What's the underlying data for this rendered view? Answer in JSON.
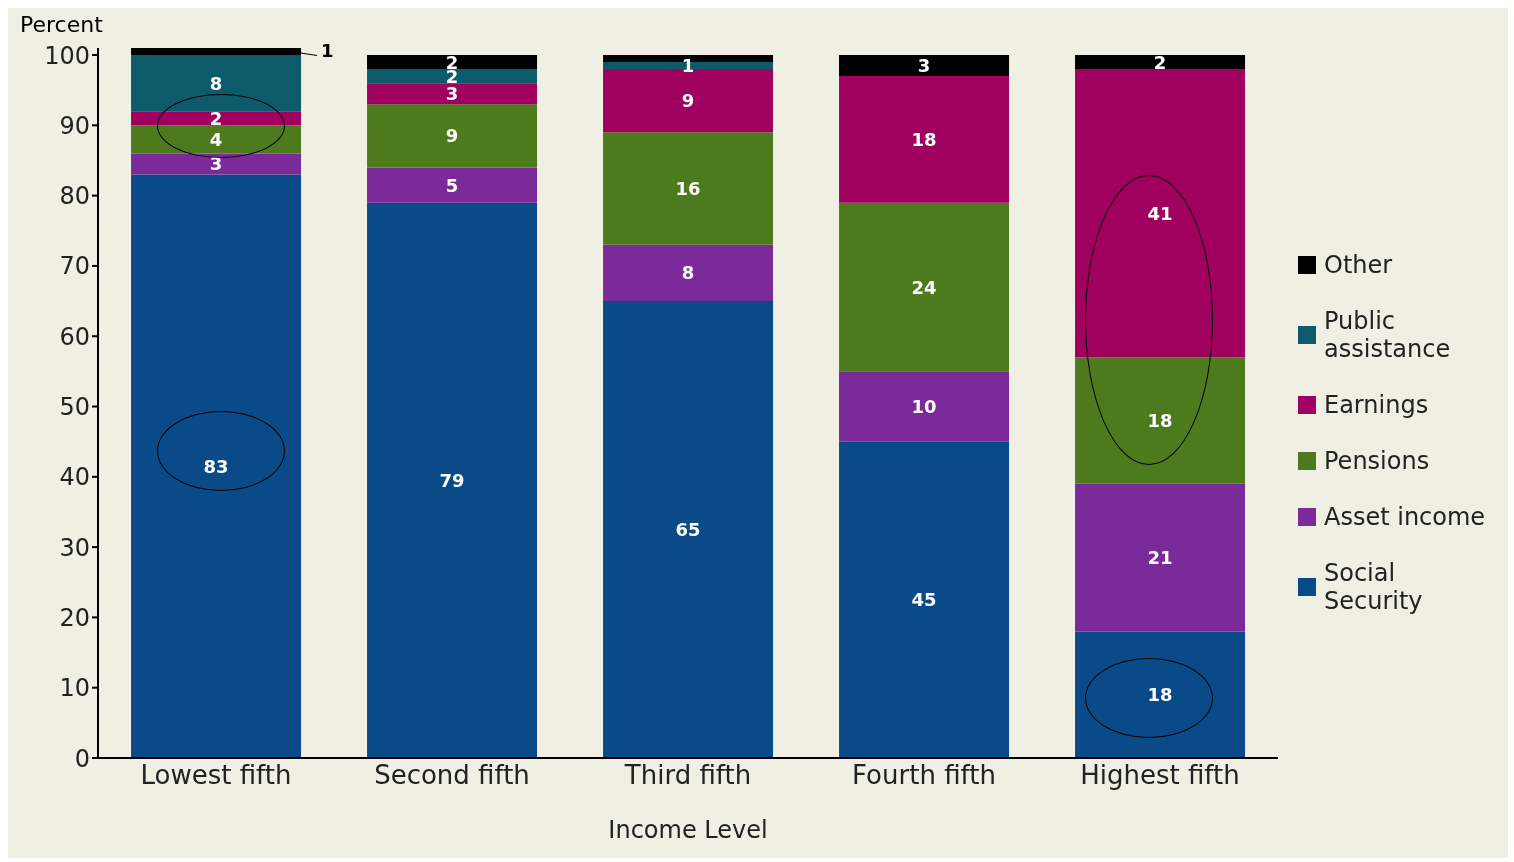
{
  "chart_data": {
    "type": "bar",
    "stacked": true,
    "ylabel": "Percent",
    "xlabel": "Income Level",
    "categories": [
      "Lowest fifth",
      "Second fifth",
      "Third fifth",
      "Fourth fifth",
      "Highest fifth"
    ],
    "series": [
      {
        "name": "Social Security",
        "color": "#0a4a88",
        "values": [
          83,
          79,
          65,
          45,
          18
        ],
        "value_labels": [
          "83",
          "79",
          "65",
          "45",
          "18"
        ]
      },
      {
        "name": "Asset income",
        "color": "#7b2a9a",
        "values": [
          3,
          5,
          8,
          10,
          21
        ],
        "value_labels": [
          "3",
          "5",
          "8",
          "10",
          "21"
        ]
      },
      {
        "name": "Pensions",
        "color": "#4e7a1e",
        "values": [
          4,
          9,
          16,
          24,
          18
        ],
        "value_labels": [
          "4",
          "9",
          "16",
          "24",
          "18"
        ]
      },
      {
        "name": "Earnings",
        "color": "#a0005f",
        "values": [
          2,
          3,
          9,
          18,
          41
        ],
        "value_labels": [
          "2",
          "3",
          "9",
          "18",
          "41"
        ]
      },
      {
        "name": "Public assistance",
        "color": "#0d5a6a",
        "values": [
          8,
          2,
          1,
          0,
          0
        ],
        "value_labels": [
          "8",
          "2",
          "1",
          null,
          null
        ]
      },
      {
        "name": "Other",
        "color": "#000000",
        "values": [
          1,
          2,
          1,
          3,
          2
        ],
        "value_labels": [
          "1",
          "2",
          null,
          "3",
          "2"
        ]
      }
    ],
    "ylim": [
      0,
      101
    ],
    "yticks": [
      0,
      10,
      20,
      30,
      40,
      50,
      60,
      70,
      80,
      90,
      100
    ],
    "grid": false,
    "legend": "right"
  }
}
